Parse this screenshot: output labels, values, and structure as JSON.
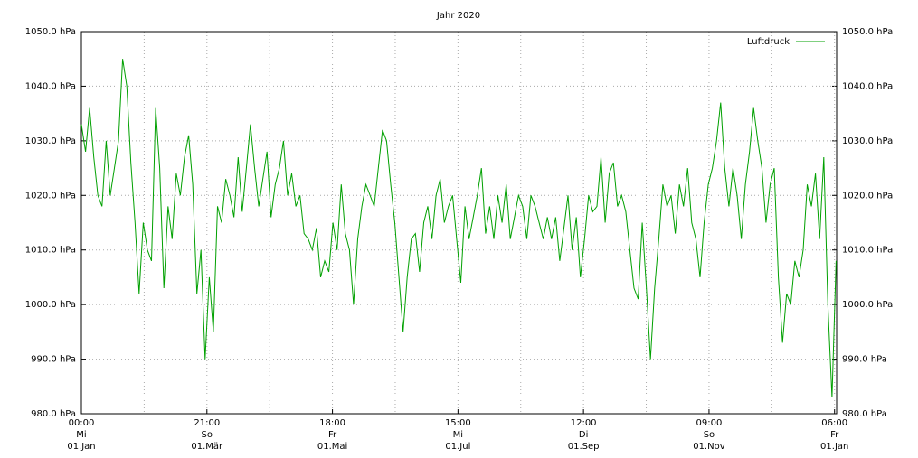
{
  "chart_data": {
    "type": "line",
    "title": "Jahr 2020",
    "x": [
      0,
      2,
      4,
      6,
      8,
      10,
      12,
      14,
      16,
      18,
      20,
      22,
      24,
      26,
      28,
      30,
      32,
      34,
      36,
      38,
      40,
      42,
      44,
      46,
      48,
      50,
      52,
      54,
      56,
      58,
      60,
      62,
      64,
      66,
      68,
      70,
      72,
      74,
      76,
      78,
      80,
      82,
      84,
      86,
      88,
      90,
      92,
      94,
      96,
      98,
      100,
      102,
      104,
      106,
      108,
      110,
      112,
      114,
      116,
      118,
      120,
      122,
      124,
      126,
      128,
      130,
      132,
      134,
      136,
      138,
      140,
      142,
      144,
      146,
      148,
      150,
      152,
      154,
      156,
      158,
      160,
      162,
      164,
      166,
      168,
      170,
      172,
      174,
      176,
      178,
      180,
      182,
      184,
      186,
      188,
      190,
      192,
      194,
      196,
      198,
      200,
      202,
      204,
      206,
      208,
      210,
      212,
      214,
      216,
      218,
      220,
      222,
      224,
      226,
      228,
      230,
      232,
      234,
      236,
      238,
      240,
      242,
      244,
      246,
      248,
      250,
      252,
      254,
      256,
      258,
      260,
      262,
      264,
      266,
      268,
      270,
      272,
      274,
      276,
      278,
      280,
      282,
      284,
      286,
      288,
      290,
      292,
      294,
      296,
      298,
      300,
      302,
      304,
      306,
      308,
      310,
      312,
      314,
      316,
      318,
      320,
      322,
      324,
      326,
      328,
      330,
      332,
      334,
      336,
      338,
      340,
      342,
      344,
      346,
      348,
      350,
      352,
      354,
      356,
      358,
      360,
      362,
      364,
      366
    ],
    "series": [
      {
        "name": "Luftdruck",
        "color": "#00a000",
        "values": [
          1033,
          1028,
          1036,
          1027,
          1020,
          1018,
          1030,
          1020,
          1025,
          1030,
          1045,
          1040,
          1026,
          1015,
          1002,
          1015,
          1010,
          1008,
          1036,
          1025,
          1003,
          1018,
          1012,
          1024,
          1020,
          1027,
          1031,
          1022,
          1002,
          1010,
          990,
          1005,
          995,
          1018,
          1015,
          1023,
          1020,
          1016,
          1027,
          1017,
          1025,
          1033,
          1025,
          1018,
          1023,
          1028,
          1016,
          1022,
          1025,
          1030,
          1020,
          1024,
          1018,
          1020,
          1013,
          1012,
          1010,
          1014,
          1005,
          1008,
          1006,
          1015,
          1010,
          1022,
          1013,
          1010,
          1000,
          1012,
          1018,
          1022,
          1020,
          1018,
          1025,
          1032,
          1030,
          1022,
          1015,
          1005,
          995,
          1005,
          1012,
          1013,
          1006,
          1015,
          1018,
          1012,
          1020,
          1023,
          1015,
          1018,
          1020,
          1012,
          1004,
          1018,
          1012,
          1016,
          1020,
          1025,
          1013,
          1018,
          1012,
          1020,
          1015,
          1022,
          1012,
          1016,
          1020,
          1018,
          1012,
          1020,
          1018,
          1015,
          1012,
          1016,
          1012,
          1016,
          1008,
          1014,
          1020,
          1010,
          1016,
          1005,
          1012,
          1020,
          1017,
          1018,
          1027,
          1015,
          1024,
          1026,
          1018,
          1020,
          1017,
          1010,
          1003,
          1001,
          1015,
          1003,
          990,
          1003,
          1012,
          1022,
          1018,
          1020,
          1013,
          1022,
          1018,
          1025,
          1015,
          1012,
          1005,
          1015,
          1022,
          1025,
          1030,
          1037,
          1025,
          1018,
          1025,
          1020,
          1012,
          1022,
          1028,
          1036,
          1030,
          1025,
          1015,
          1022,
          1025,
          1005,
          993,
          1002,
          1000,
          1008,
          1005,
          1010,
          1022,
          1018,
          1024,
          1012,
          1027,
          1000,
          983,
          1008
        ]
      }
    ],
    "xlim": [
      0,
      366.25
    ],
    "xticks": [
      {
        "value": 0,
        "label": "00:00\nMi\n01.Jan"
      },
      {
        "value": 60.875,
        "label": "21:00\nSo\n01.Mär"
      },
      {
        "value": 121.75,
        "label": "18:00\nFr\n01.Mai"
      },
      {
        "value": 182.625,
        "label": "15:00\nMi\n01.Jul"
      },
      {
        "value": 243.5,
        "label": "12:00\nDi\n01.Sep"
      },
      {
        "value": 304.375,
        "label": "09:00\nSo\n01.Nov"
      },
      {
        "value": 365.25,
        "label": "06:00\nFr\n01.Jan"
      }
    ],
    "xminor": [
      30.4375,
      91.3125,
      152.1875,
      213.0625,
      273.9375,
      334.8125
    ],
    "ylim": [
      980,
      1050
    ],
    "yticks": [
      {
        "value": 980,
        "label": "980.0 hPa"
      },
      {
        "value": 990,
        "label": "990.0 hPa"
      },
      {
        "value": 1000,
        "label": "1000.0 hPa"
      },
      {
        "value": 1010,
        "label": "1010.0 hPa"
      },
      {
        "value": 1020,
        "label": "1020.0 hPa"
      },
      {
        "value": 1030,
        "label": "1030.0 hPa"
      },
      {
        "value": 1040,
        "label": "1040.0 hPa"
      },
      {
        "value": 1050,
        "label": "1050.0 hPa"
      }
    ],
    "y2lim": [
      980,
      1050
    ],
    "y2ticks": [
      {
        "value": 980,
        "label": "980.0 hPa"
      },
      {
        "value": 990,
        "label": "990.0 hPa"
      },
      {
        "value": 1000,
        "label": "1000.0 hPa"
      },
      {
        "value": 1010,
        "label": "1010.0 hPa"
      },
      {
        "value": 1020,
        "label": "1020.0 hPa"
      },
      {
        "value": 1030,
        "label": "1030.0 hPa"
      },
      {
        "value": 1040,
        "label": "1040.0 hPa"
      },
      {
        "value": 1050,
        "label": "1050.0 hPa"
      }
    ],
    "grid": true,
    "legend": "top-right"
  }
}
